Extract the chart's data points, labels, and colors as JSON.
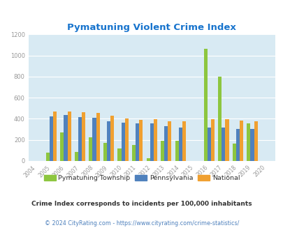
{
  "title": "Pymatuning Violent Crime Index",
  "years": [
    2004,
    2005,
    2006,
    2007,
    2008,
    2009,
    2010,
    2011,
    2012,
    2013,
    2014,
    2015,
    2016,
    2017,
    2018,
    2019,
    2020
  ],
  "pymatuning": [
    0,
    80,
    270,
    85,
    225,
    175,
    120,
    155,
    25,
    190,
    190,
    0,
    1065,
    800,
    165,
    360,
    0
  ],
  "pennsylvania": [
    0,
    420,
    435,
    415,
    408,
    380,
    365,
    360,
    355,
    330,
    320,
    0,
    315,
    315,
    305,
    305,
    0
  ],
  "national": [
    0,
    470,
    470,
    465,
    455,
    430,
    405,
    390,
    395,
    375,
    375,
    0,
    395,
    395,
    385,
    380,
    0
  ],
  "color_pymatuning": "#8dc63f",
  "color_pennsylvania": "#4f81bd",
  "color_national": "#f0a030",
  "color_title": "#1874cd",
  "color_background_chart": "#d8eaf3",
  "color_grid": "#ffffff",
  "color_footnote": "#4f81bd",
  "color_note_text": "#333333",
  "ylabel_max": 1200,
  "yticks": [
    0,
    200,
    400,
    600,
    800,
    1000,
    1200
  ],
  "bar_width": 0.25,
  "legend_labels": [
    "Pymatuning Township",
    "Pennsylvania",
    "National"
  ],
  "note": "Crime Index corresponds to incidents per 100,000 inhabitants",
  "footnote": "© 2024 CityRating.com - https://www.cityrating.com/crime-statistics/"
}
